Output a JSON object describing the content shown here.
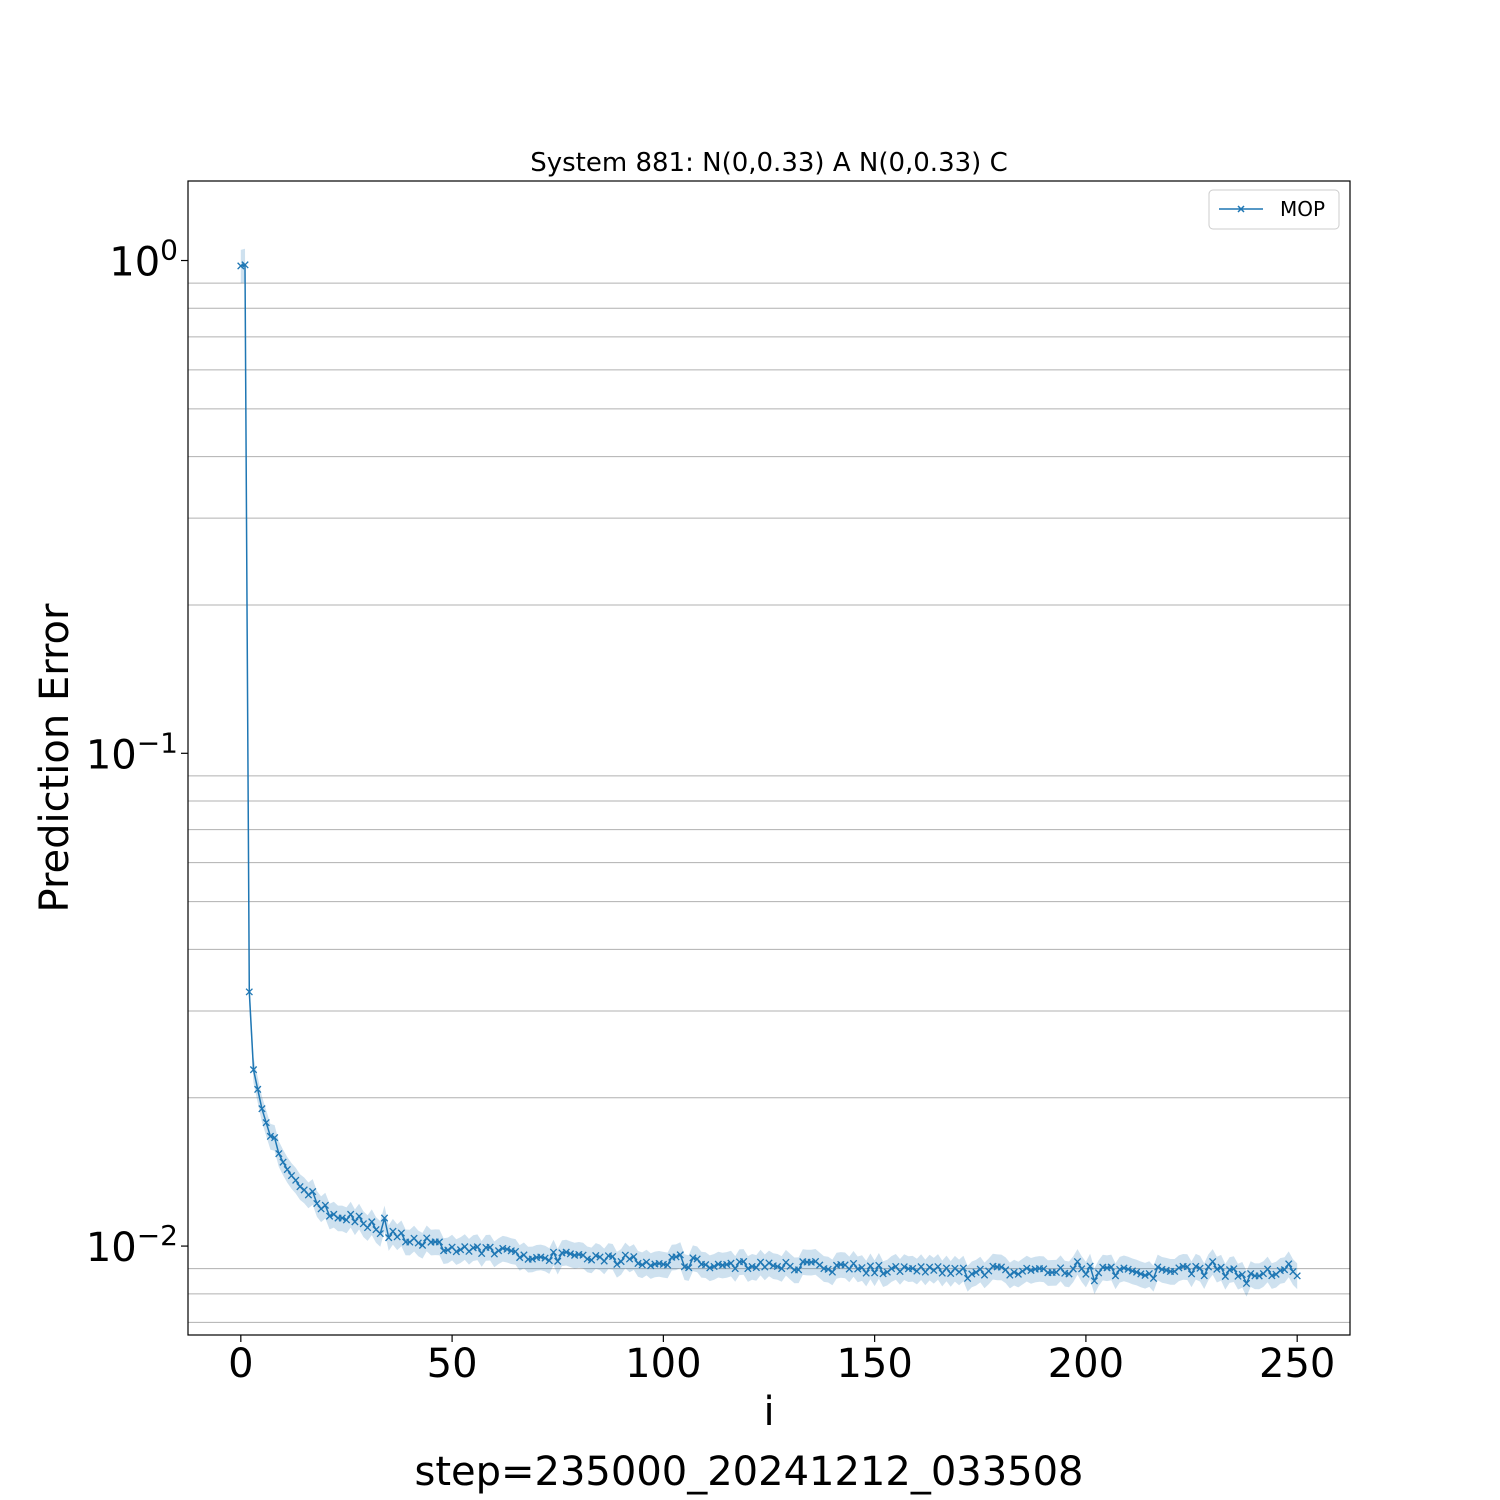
{
  "chart_data": {
    "type": "line",
    "title": "System 881: N(0,0.33) A N(0,0.33) C",
    "xlabel": "i",
    "ylabel": "Prediction Error",
    "footer": "step=235000_20241212_033508",
    "xlim": [
      -12.5,
      262.5
    ],
    "ylim": [
      0.0066,
      1.45
    ],
    "yscale": "log",
    "xticks": [
      0,
      50,
      100,
      150,
      200,
      250
    ],
    "xtick_labels": [
      "0",
      "50",
      "100",
      "150",
      "200",
      "250"
    ],
    "yticks": [
      {
        "value": 1,
        "base": "10",
        "exp": "0"
      },
      {
        "value": 0.1,
        "base": "10",
        "exp": "−1"
      },
      {
        "value": 0.01,
        "base": "10",
        "exp": "−2"
      }
    ],
    "grid": "y-minor",
    "legend": {
      "position": "top-right",
      "label": "MOP"
    },
    "series": [
      {
        "name": "MOP",
        "color": "#1f77b4",
        "marker": "x",
        "band_half_width": 0.06,
        "start_points": [
          [
            0,
            0.975
          ],
          [
            1,
            0.98
          ],
          [
            2,
            0.0328
          ],
          [
            3,
            0.0228
          ],
          [
            4,
            0.0208
          ],
          [
            5,
            0.019
          ],
          [
            6,
            0.0178
          ],
          [
            7,
            0.0167
          ],
          [
            8,
            0.0166
          ],
          [
            9,
            0.0154
          ],
          [
            10,
            0.0148
          ],
          [
            11,
            0.0143
          ],
          [
            12,
            0.0139
          ],
          [
            13,
            0.0136
          ],
          [
            14,
            0.0132
          ],
          [
            15,
            0.013
          ],
          [
            16,
            0.0127
          ],
          [
            17,
            0.0129
          ],
          [
            18,
            0.0122
          ],
          [
            19,
            0.0119
          ],
          [
            20,
            0.0121
          ],
          [
            21,
            0.0115
          ],
          [
            22,
            0.0116
          ],
          [
            23,
            0.0114
          ],
          [
            24,
            0.0114
          ],
          [
            25,
            0.0113
          ],
          [
            26,
            0.0116
          ],
          [
            27,
            0.0112
          ],
          [
            28,
            0.0115
          ],
          [
            29,
            0.0111
          ],
          [
            30,
            0.0109
          ],
          [
            31,
            0.0112
          ],
          [
            32,
            0.0108
          ],
          [
            33,
            0.0106
          ],
          [
            34,
            0.0114
          ],
          [
            35,
            0.0104
          ]
        ],
        "tail": {
          "x_start": 36,
          "x_end": 250,
          "knots": [
            [
              36,
              0.0106
            ],
            [
              50,
              0.0099
            ],
            [
              70,
              0.0096
            ],
            [
              100,
              0.0093
            ],
            [
              150,
              0.009
            ],
            [
              200,
              0.0089
            ],
            [
              250,
              0.0089
            ]
          ],
          "noise_seed": 881,
          "noise_rel": 0.025,
          "spikes": [
            [
              85,
              0.0095
            ],
            [
              104,
              0.0096
            ],
            [
              172,
              0.0086
            ],
            [
              198,
              0.0093
            ],
            [
              202,
              0.0085
            ],
            [
              216,
              0.0086
            ],
            [
              230,
              0.0093
            ],
            [
              238,
              0.0084
            ],
            [
              240,
              0.0087
            ],
            [
              248,
              0.0092
            ],
            [
              250,
              0.0087
            ]
          ]
        }
      }
    ]
  }
}
